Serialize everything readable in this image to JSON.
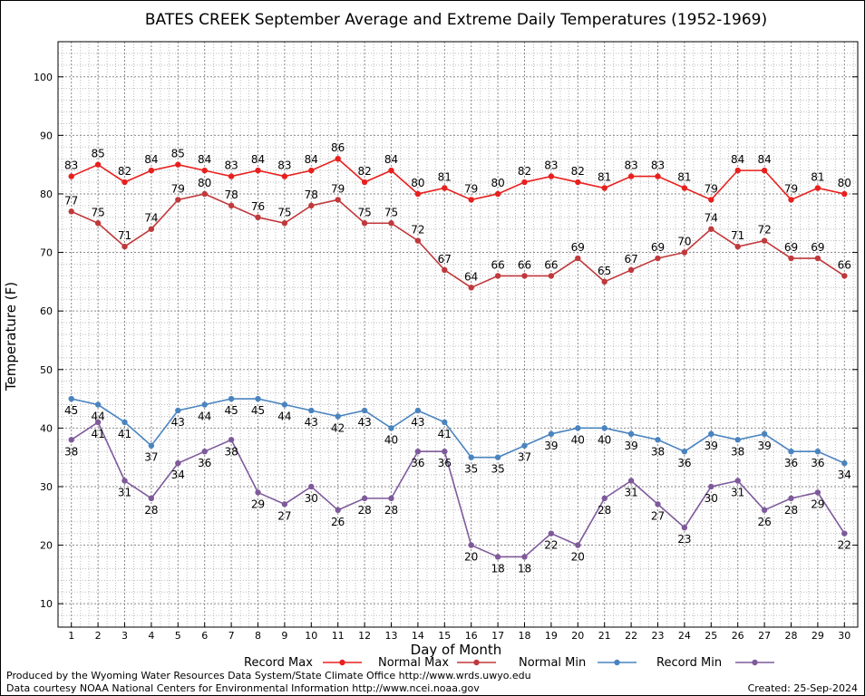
{
  "chart_data": {
    "type": "line",
    "title": "BATES CREEK September Average and Extreme Daily Temperatures (1952-1969)",
    "xlabel": "Day of Month",
    "ylabel": "Temperature (F)",
    "xlim": [
      0.5,
      30.5
    ],
    "ylim": [
      6,
      106
    ],
    "yticks": [
      10,
      20,
      30,
      40,
      50,
      60,
      70,
      80,
      90,
      100
    ],
    "x": [
      1,
      2,
      3,
      4,
      5,
      6,
      7,
      8,
      9,
      10,
      11,
      12,
      13,
      14,
      15,
      16,
      17,
      18,
      19,
      20,
      21,
      22,
      23,
      24,
      25,
      26,
      27,
      28,
      29,
      30
    ],
    "grid": true,
    "legend_position": "bottom",
    "series": [
      {
        "name": "Record Max",
        "color": "#e8201e",
        "label_position": "above",
        "values": [
          83,
          85,
          82,
          84,
          85,
          84,
          83,
          84,
          83,
          84,
          86,
          82,
          84,
          80,
          81,
          79,
          80,
          82,
          83,
          82,
          81,
          83,
          83,
          81,
          79,
          84,
          84,
          79,
          81,
          80
        ]
      },
      {
        "name": "Normal Max",
        "color": "#c0393c",
        "label_position": "above",
        "values": [
          77,
          75,
          71,
          74,
          79,
          80,
          78,
          76,
          75,
          78,
          79,
          75,
          75,
          72,
          67,
          64,
          66,
          66,
          66,
          69,
          65,
          67,
          69,
          70,
          74,
          71,
          72,
          69,
          69,
          66
        ]
      },
      {
        "name": "Normal Min",
        "color": "#4a84bf",
        "label_position": "below",
        "values": [
          45,
          44,
          41,
          37,
          43,
          44,
          45,
          45,
          44,
          43,
          42,
          43,
          40,
          43,
          41,
          35,
          35,
          37,
          39,
          40,
          40,
          39,
          38,
          36,
          39,
          38,
          39,
          36,
          36,
          34
        ]
      },
      {
        "name": "Record Min",
        "color": "#7e5a9b",
        "label_position": "below",
        "values": [
          38,
          41,
          31,
          28,
          34,
          36,
          38,
          29,
          27,
          30,
          26,
          28,
          28,
          36,
          36,
          20,
          18,
          18,
          22,
          20,
          28,
          31,
          27,
          23,
          30,
          31,
          26,
          28,
          29,
          22
        ]
      }
    ]
  },
  "footer": {
    "producer": "Produced by the Wyoming Water Resources Data System/State Climate Office http://www.wrds.uwyo.edu",
    "courtesy": "Data courtesy NOAA National Centers for Environmental Information http://www.ncei.noaa.gov",
    "created": "Created:  25-Sep-2024"
  }
}
